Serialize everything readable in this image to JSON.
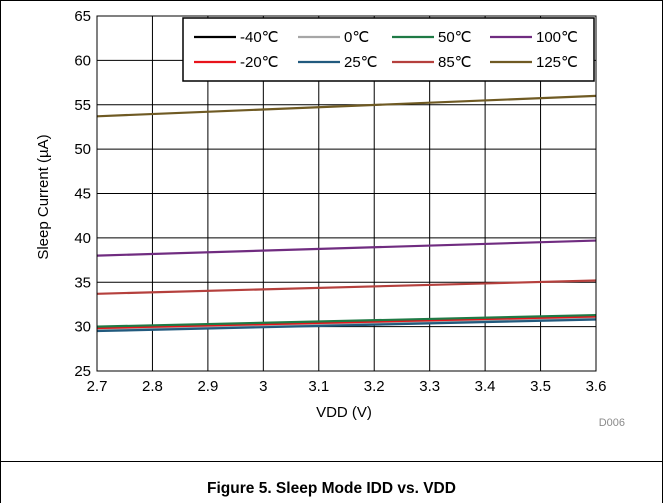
{
  "figure": {
    "caption": "Figure 5. Sleep Mode IDD vs. VDD",
    "code": "D006"
  },
  "chart_data": {
    "type": "line",
    "title": "",
    "xlabel": "VDD (V)",
    "ylabel": "Sleep Current (µA)",
    "xlim": [
      2.7,
      3.6
    ],
    "ylim": [
      25,
      65
    ],
    "xticks": [
      2.7,
      2.8,
      2.9,
      3,
      3.1,
      3.2,
      3.3,
      3.4,
      3.5,
      3.6
    ],
    "xtick_labels": [
      "2.7",
      "2.8",
      "2.9",
      "3",
      "3.1",
      "3.2",
      "3.3",
      "3.4",
      "3.5",
      "3.6"
    ],
    "yticks": [
      25,
      30,
      35,
      40,
      45,
      50,
      55,
      60,
      65
    ],
    "ytick_labels": [
      "25",
      "30",
      "35",
      "40",
      "45",
      "50",
      "55",
      "60",
      "65"
    ],
    "grid": true,
    "legend_position": "top-right",
    "x": [
      2.7,
      3.6
    ],
    "series": [
      {
        "name": "-40℃",
        "color": "#000000",
        "values": [
          29.7,
          31.0
        ]
      },
      {
        "name": "-20℃",
        "color": "#e8131b",
        "values": [
          29.8,
          31.1
        ]
      },
      {
        "name": "0℃",
        "color": "#a6a6a6",
        "values": [
          29.6,
          30.9
        ]
      },
      {
        "name": "25℃",
        "color": "#215a7e",
        "values": [
          29.5,
          30.8
        ]
      },
      {
        "name": "50℃",
        "color": "#1f7a45",
        "values": [
          30.0,
          31.3
        ]
      },
      {
        "name": "85℃",
        "color": "#b5403d",
        "values": [
          33.7,
          35.2
        ]
      },
      {
        "name": "100℃",
        "color": "#702c80",
        "values": [
          38.0,
          39.7
        ]
      },
      {
        "name": "125℃",
        "color": "#6f5a23",
        "values": [
          53.7,
          56.0
        ]
      }
    ],
    "legend_order": [
      "-40℃",
      "0℃",
      "50℃",
      "100℃",
      "-20℃",
      "25℃",
      "85℃",
      "125℃"
    ]
  }
}
